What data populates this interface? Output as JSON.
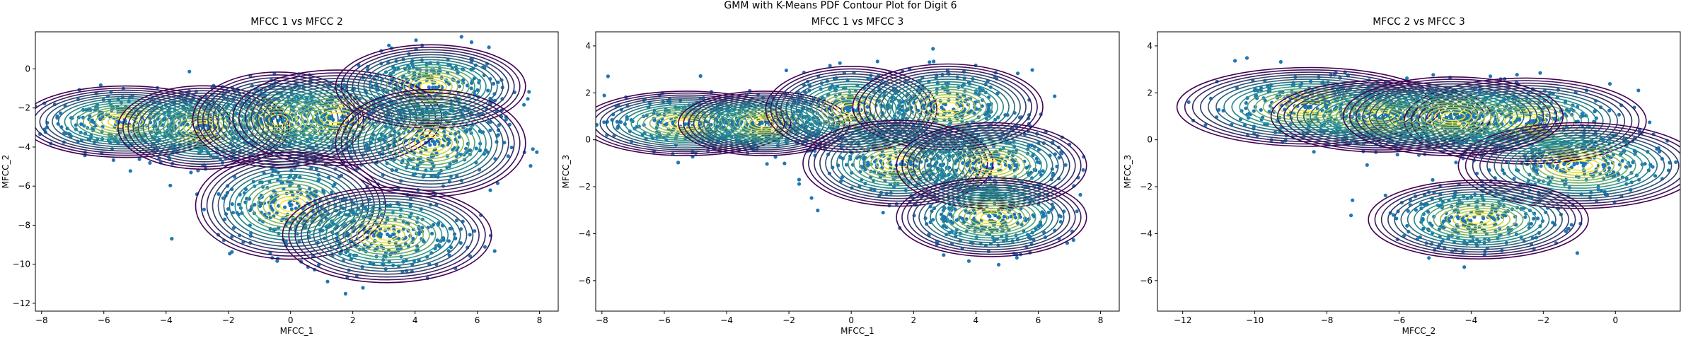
{
  "figure": {
    "suptitle": "GMM with K-Means PDF Contour Plot for Digit 6"
  },
  "colors": {
    "points": "#1f77b4",
    "contour_outer": "#440154",
    "contour_mid": "#21918c",
    "contour_inner": "#fde725",
    "axes": "#000000"
  },
  "chart_data": [
    {
      "type": "scatter",
      "title": "MFCC 1 vs MFCC 2",
      "xlabel": "MFCC_1",
      "ylabel": "MFCC_2",
      "xlim": [
        -8.2,
        8.6
      ],
      "ylim": [
        -12.4,
        1.9
      ],
      "xticks": [
        -8,
        -6,
        -4,
        -2,
        0,
        2,
        4,
        6,
        8
      ],
      "yticks": [
        -12,
        -10,
        -8,
        -6,
        -4,
        -2,
        0
      ],
      "grid": false,
      "overlay": "gmm-contours",
      "components": [
        {
          "mean": [
            -5.3,
            -2.7
          ],
          "spread": [
            1.1,
            0.6
          ]
        },
        {
          "mean": [
            -2.8,
            -3.0
          ],
          "spread": [
            0.9,
            0.7
          ]
        },
        {
          "mean": [
            -0.4,
            -2.6
          ],
          "spread": [
            0.9,
            0.8
          ]
        },
        {
          "mean": [
            1.5,
            -2.5
          ],
          "spread": [
            1.1,
            0.8
          ]
        },
        {
          "mean": [
            4.5,
            -0.9
          ],
          "spread": [
            1.0,
            0.7
          ]
        },
        {
          "mean": [
            4.5,
            -3.8
          ],
          "spread": [
            1.0,
            0.9
          ]
        },
        {
          "mean": [
            0.0,
            -7.0
          ],
          "spread": [
            1.0,
            0.9
          ]
        },
        {
          "mean": [
            3.1,
            -8.5
          ],
          "spread": [
            1.1,
            0.8
          ]
        }
      ]
    },
    {
      "type": "scatter",
      "title": "MFCC 1 vs MFCC 3",
      "xlabel": "MFCC_1",
      "ylabel": "MFCC_3",
      "xlim": [
        -8.2,
        8.6
      ],
      "ylim": [
        -7.3,
        4.6
      ],
      "xticks": [
        -8,
        -6,
        -4,
        -2,
        0,
        2,
        4,
        6,
        8
      ],
      "yticks": [
        -6,
        -4,
        -2,
        0,
        2,
        4
      ],
      "grid": false,
      "overlay": "gmm-contours",
      "components": [
        {
          "mean": [
            -5.3,
            0.7
          ],
          "spread": [
            1.1,
            0.45
          ]
        },
        {
          "mean": [
            -2.8,
            0.7
          ],
          "spread": [
            0.9,
            0.45
          ]
        },
        {
          "mean": [
            0.0,
            1.3
          ],
          "spread": [
            0.9,
            0.6
          ]
        },
        {
          "mean": [
            3.1,
            1.4
          ],
          "spread": [
            1.0,
            0.6
          ]
        },
        {
          "mean": [
            1.5,
            -1.0
          ],
          "spread": [
            1.0,
            0.6
          ]
        },
        {
          "mean": [
            4.5,
            -1.1
          ],
          "spread": [
            1.0,
            0.6
          ]
        },
        {
          "mean": [
            4.5,
            -3.3
          ],
          "spread": [
            1.0,
            0.55
          ]
        }
      ]
    },
    {
      "type": "scatter",
      "title": "MFCC 2 vs MFCC 3",
      "xlabel": "MFCC_2",
      "ylabel": "MFCC_3",
      "xlim": [
        -12.7,
        1.8
      ],
      "ylim": [
        -7.3,
        4.6
      ],
      "xticks": [
        -12,
        -10,
        -8,
        -6,
        -4,
        -2,
        0
      ],
      "yticks": [
        -6,
        -4,
        -2,
        0,
        2,
        4
      ],
      "grid": false,
      "overlay": "gmm-contours",
      "components": [
        {
          "mean": [
            -8.5,
            1.4
          ],
          "spread": [
            1.2,
            0.55
          ]
        },
        {
          "mean": [
            -6.5,
            1.0
          ],
          "spread": [
            1.0,
            0.5
          ]
        },
        {
          "mean": [
            -2.5,
            0.8
          ],
          "spread": [
            1.1,
            0.6
          ]
        },
        {
          "mean": [
            -1.0,
            -1.1
          ],
          "spread": [
            1.1,
            0.6
          ]
        },
        {
          "mean": [
            -3.8,
            -3.4
          ],
          "spread": [
            1.0,
            0.55
          ]
        },
        {
          "mean": [
            -4.5,
            1.0
          ],
          "spread": [
            1.0,
            0.55
          ]
        }
      ]
    }
  ]
}
